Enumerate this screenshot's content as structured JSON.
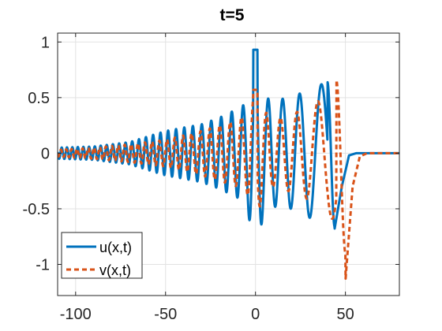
{
  "chart_data": {
    "type": "line",
    "title": "t=5",
    "xlabel": "",
    "ylabel": "",
    "xlim": [
      -110,
      80
    ],
    "ylim": [
      -1.28,
      1.08
    ],
    "xticks": [
      -100,
      -50,
      0,
      50
    ],
    "xtick_labels": [
      "-100",
      "-50",
      "0",
      "50"
    ],
    "yticks": [
      -1,
      -0.5,
      0,
      0.5,
      1
    ],
    "ytick_labels": [
      "-1",
      "-0.5",
      "0",
      "0.5",
      "1"
    ],
    "grid": true,
    "legend_position": "bottom-left",
    "series": [
      {
        "name": "u(x,t)",
        "style": "solid",
        "color": "#0072BD",
        "envelope_points": [
          [
            -110,
            0.05
          ],
          [
            -90,
            0.06
          ],
          [
            -70,
            0.1
          ],
          [
            -50,
            0.2
          ],
          [
            -30,
            0.26
          ],
          [
            -20,
            0.32
          ],
          [
            -10,
            0.4
          ],
          [
            -5,
            0.45
          ],
          [
            0,
            0.93
          ],
          [
            5,
            0.5
          ],
          [
            10,
            0.48
          ],
          [
            20,
            0.5
          ],
          [
            30,
            0.58
          ],
          [
            40,
            0.64
          ],
          [
            44,
            -0.68
          ],
          [
            48,
            -0.3
          ],
          [
            52,
            -0.02
          ],
          [
            56,
            0.0
          ],
          [
            80,
            0.0
          ]
        ]
      },
      {
        "name": "v(x,t)",
        "style": "dashed",
        "color": "#D95319",
        "envelope_points": [
          [
            -110,
            0.03
          ],
          [
            -90,
            0.05
          ],
          [
            -70,
            0.08
          ],
          [
            -50,
            0.12
          ],
          [
            -30,
            0.2
          ],
          [
            -20,
            0.25
          ],
          [
            -10,
            0.3
          ],
          [
            -5,
            0.35
          ],
          [
            0,
            0.57
          ],
          [
            5,
            0.38
          ],
          [
            10,
            0.3
          ],
          [
            20,
            0.35
          ],
          [
            30,
            0.42
          ],
          [
            40,
            0.52
          ],
          [
            45,
            0.66
          ],
          [
            50,
            -1.15
          ],
          [
            54,
            -0.3
          ],
          [
            58,
            -0.03
          ],
          [
            62,
            0.0
          ],
          [
            80,
            0.0
          ]
        ]
      }
    ]
  }
}
